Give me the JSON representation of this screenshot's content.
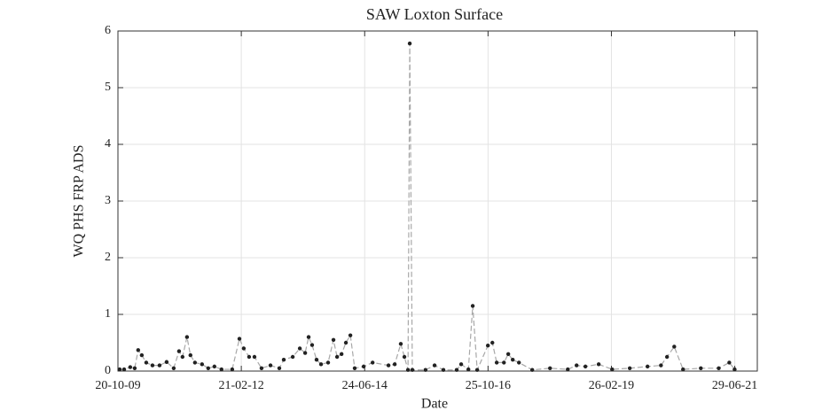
{
  "chart_data": {
    "type": "line",
    "title": "SAW Loxton Surface",
    "xlabel": "Date",
    "ylabel": "WQ PHS FRP ADS",
    "x": [
      "01-11-09",
      "02-12-09",
      "13-01-10",
      "13-02-10",
      "09-03-10",
      "03-04-10",
      "04-05-10",
      "16-06-10",
      "04-08-10",
      "22-09-10",
      "10-11-10",
      "17-12-10",
      "10-01-11",
      "10-02-11",
      "06-03-11",
      "06-04-11",
      "25-05-11",
      "07-07-11",
      "19-08-11",
      "07-10-11",
      "20-12-11",
      "08-02-12",
      "09-03-12",
      "15-04-12",
      "22-05-12",
      "10-07-12",
      "10-09-12",
      "10-11-12",
      "11-12-12",
      "11-02-13",
      "01-04-13",
      "08-05-13",
      "01-06-13",
      "25-06-13",
      "26-07-13",
      "26-08-13",
      "14-10-13",
      "20-11-13",
      "15-12-13",
      "15-01-14",
      "14-02-14",
      "17-03-14",
      "16-04-14",
      "17-06-14",
      "18-08-14",
      "06-12-14",
      "18-01-15",
      "01-03-15",
      "26-03-15",
      "20-04-15",
      "02-05-15",
      "20-05-15",
      "19-08-15",
      "21-10-15",
      "21-12-15",
      "22-03-16",
      "22-04-16",
      "11-06-16",
      "11-07-16",
      "11-08-16",
      "24-10-16",
      "24-11-16",
      "24-12-16",
      "12-02-17",
      "14-03-17",
      "14-04-17",
      "27-05-17",
      "27-08-17",
      "28-12-17",
      "30-04-18",
      "30-06-18",
      "30-08-18",
      "30-11-18",
      "03-03-19",
      "03-07-19",
      "03-11-19",
      "04-02-20",
      "17-03-20",
      "06-05-20",
      "06-07-20",
      "06-11-20",
      "10-03-21",
      "22-05-21",
      "28-06-21"
    ],
    "values": [
      0.03,
      0.03,
      0.07,
      0.05,
      0.37,
      0.28,
      0.15,
      0.1,
      0.1,
      0.16,
      0.05,
      0.35,
      0.25,
      0.6,
      0.28,
      0.15,
      0.12,
      0.05,
      0.08,
      0.03,
      0.03,
      0.57,
      0.4,
      0.25,
      0.25,
      0.05,
      0.1,
      0.05,
      0.2,
      0.25,
      0.4,
      0.32,
      0.6,
      0.46,
      0.2,
      0.12,
      0.15,
      0.55,
      0.25,
      0.3,
      0.5,
      0.63,
      0.05,
      0.08,
      0.15,
      0.1,
      0.12,
      0.48,
      0.25,
      0.02,
      5.78,
      0.02,
      0.02,
      0.1,
      0.02,
      0.02,
      0.12,
      0.03,
      1.15,
      0.02,
      0.45,
      0.5,
      0.15,
      0.15,
      0.3,
      0.2,
      0.15,
      0.02,
      0.05,
      0.03,
      0.1,
      0.08,
      0.12,
      0.03,
      0.05,
      0.08,
      0.1,
      0.25,
      0.43,
      0.03,
      0.05,
      0.05,
      0.15,
      0.03
    ],
    "color": "#222222",
    "line_color": "#a8a8a8",
    "line_style": "dashed",
    "xlim": [
      "20-10-09",
      "02-12-21"
    ],
    "xticks": [
      "20-10-09",
      "21-02-12",
      "24-06-14",
      "25-10-16",
      "26-02-19",
      "29-06-21"
    ],
    "ylim": [
      0,
      6
    ],
    "yticks": [
      0,
      1,
      2,
      3,
      4,
      5,
      6
    ],
    "grid": true
  }
}
